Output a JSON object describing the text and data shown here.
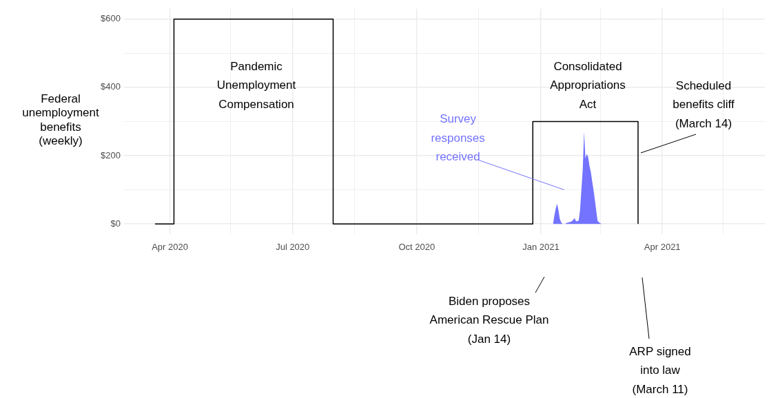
{
  "chart_data": {
    "type": "step",
    "ylabel": "Federal unemployment benefits (weekly)",
    "xlim": [
      "2020-02-27",
      "2021-06-16"
    ],
    "ylim": [
      -30,
      630
    ],
    "xticks": [
      {
        "value": "2020-04-01",
        "label": "Apr 2020"
      },
      {
        "value": "2020-05-16",
        "label": null
      },
      {
        "value": "2020-07-01",
        "label": "Jul 2020"
      },
      {
        "value": "2020-08-16",
        "label": null
      },
      {
        "value": "2020-10-01",
        "label": "Oct 2020"
      },
      {
        "value": "2020-11-16",
        "label": null
      },
      {
        "value": "2021-01-01",
        "label": "Jan 2021"
      },
      {
        "value": "2021-02-14",
        "label": null
      },
      {
        "value": "2021-04-01",
        "label": "Apr 2021"
      },
      {
        "value": "2021-05-16",
        "label": null
      }
    ],
    "yticks": [
      {
        "value": 0,
        "label": "$0"
      },
      {
        "value": 100,
        "label": null
      },
      {
        "value": 200,
        "label": "$200"
      },
      {
        "value": 300,
        "label": null
      },
      {
        "value": 400,
        "label": "$400"
      },
      {
        "value": 500,
        "label": null
      },
      {
        "value": 600,
        "label": "$600"
      }
    ],
    "grid": true,
    "series": [
      {
        "type": "step",
        "color": "#000000",
        "x": [
          "2020-03-21",
          "2020-04-04",
          "2020-07-31",
          "2020-12-26",
          "2021-03-14"
        ],
        "values": [
          0,
          600,
          0,
          300,
          0
        ]
      },
      {
        "type": "area",
        "name": "Survey responses received",
        "color": "#7373ff",
        "x": [
          "2021-01-10",
          "2021-01-11",
          "2021-01-12",
          "2021-01-13",
          "2021-01-14",
          "2021-01-15",
          "2021-01-16",
          "2021-01-17",
          "2021-01-19",
          "2021-01-20",
          "2021-01-22",
          "2021-01-24",
          "2021-01-26",
          "2021-01-27",
          "2021-01-28",
          "2021-01-29",
          "2021-01-30",
          "2021-01-31",
          "2021-02-01",
          "2021-02-02",
          "2021-02-03",
          "2021-02-04",
          "2021-02-05",
          "2021-02-06",
          "2021-02-07",
          "2021-02-08",
          "2021-02-09",
          "2021-02-10",
          "2021-02-11",
          "2021-02-12",
          "2021-02-13",
          "2021-02-14",
          "2021-02-15"
        ],
        "values": [
          0,
          25,
          45,
          59,
          40,
          15,
          5,
          0,
          0,
          3,
          5,
          8,
          17,
          8,
          8,
          10,
          40,
          99,
          159,
          270,
          192,
          205,
          196,
          170,
          152,
          125,
          99,
          70,
          39,
          9,
          5,
          2,
          0
        ]
      }
    ],
    "annotations": [
      "Pandemic Unemployment Compensation",
      "Consolidated Appropriations Act",
      "Scheduled benefits cliff (March 14)",
      "Biden proposes American Rescue Plan (Jan 14)",
      "ARP signed into law (March 11)"
    ]
  }
}
